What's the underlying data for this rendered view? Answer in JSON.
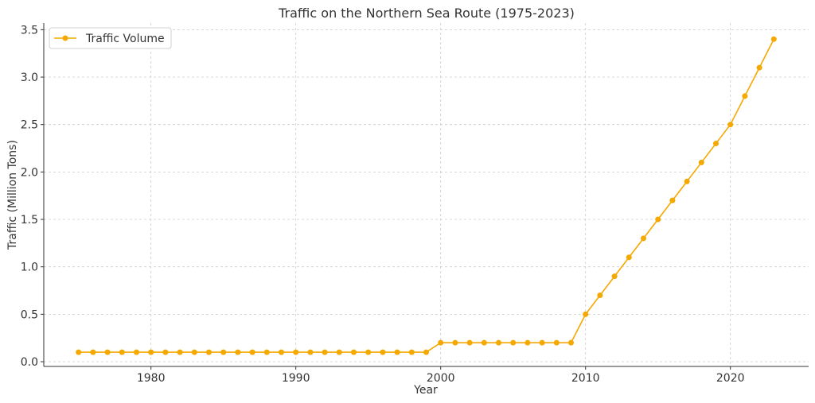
{
  "chart_data": {
    "type": "line",
    "title": "Traffic on the Northern Sea Route (1975-2023)",
    "xlabel": "Year",
    "ylabel": "Traffic (Million Tons)",
    "xlim": [
      1972.6,
      2025.4
    ],
    "ylim": [
      -0.05,
      3.57
    ],
    "x_ticks": [
      1980,
      1990,
      2000,
      2010,
      2020
    ],
    "y_ticks": [
      "0.0",
      "0.5",
      "1.0",
      "1.5",
      "2.0",
      "2.5",
      "3.0",
      "3.5"
    ],
    "grid": true,
    "legend_position": "top-left",
    "series": [
      {
        "name": "Traffic Volume",
        "color": "#f5a800",
        "x": [
          1975,
          1976,
          1977,
          1978,
          1979,
          1980,
          1981,
          1982,
          1983,
          1984,
          1985,
          1986,
          1987,
          1988,
          1989,
          1990,
          1991,
          1992,
          1993,
          1994,
          1995,
          1996,
          1997,
          1998,
          1999,
          2000,
          2001,
          2002,
          2003,
          2004,
          2005,
          2006,
          2007,
          2008,
          2009,
          2010,
          2011,
          2012,
          2013,
          2014,
          2015,
          2016,
          2017,
          2018,
          2019,
          2020,
          2021,
          2022,
          2023
        ],
        "y": [
          0.1,
          0.1,
          0.1,
          0.1,
          0.1,
          0.1,
          0.1,
          0.1,
          0.1,
          0.1,
          0.1,
          0.1,
          0.1,
          0.1,
          0.1,
          0.1,
          0.1,
          0.1,
          0.1,
          0.1,
          0.1,
          0.1,
          0.1,
          0.1,
          0.1,
          0.2,
          0.2,
          0.2,
          0.2,
          0.2,
          0.2,
          0.2,
          0.2,
          0.2,
          0.2,
          0.5,
          0.7,
          0.9,
          1.1,
          1.3,
          1.5,
          1.7,
          1.9,
          2.1,
          2.3,
          2.5,
          2.8,
          3.1,
          3.4
        ]
      }
    ]
  }
}
